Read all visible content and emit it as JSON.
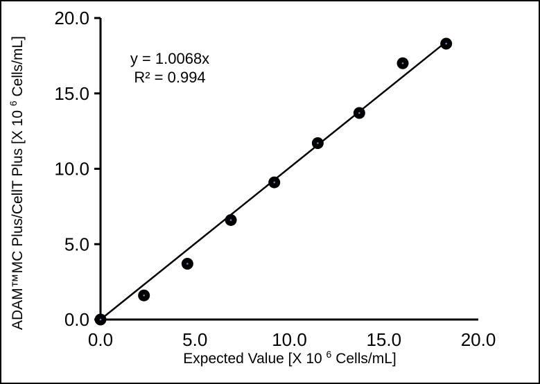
{
  "chart_data": {
    "type": "scatter",
    "points": [
      {
        "x": 0.0,
        "y": 0.0
      },
      {
        "x": 2.3,
        "y": 1.6
      },
      {
        "x": 4.6,
        "y": 3.7
      },
      {
        "x": 6.9,
        "y": 6.6
      },
      {
        "x": 9.2,
        "y": 9.1
      },
      {
        "x": 11.5,
        "y": 11.7
      },
      {
        "x": 13.7,
        "y": 13.7
      },
      {
        "x": 16.0,
        "y": 17.0
      },
      {
        "x": 18.3,
        "y": 18.3
      }
    ],
    "trendline": {
      "equation": "y = 1.0068x",
      "r_squared_text": "R² = 0.994",
      "slope": 1.0068,
      "intercept": 0,
      "r_squared": 0.994,
      "x_range": [
        0,
        18.3
      ]
    },
    "xlabel": {
      "prefix": "Expected Value [X 10",
      "sup": "6",
      "suffix": " Cells/mL]"
    },
    "ylabel": {
      "prefix": "ADAM™MC Plus/CellT Plus [X 10",
      "sup": "6",
      "suffix": " Cells/mL]"
    },
    "x_ticks": [
      "0.0",
      "5.0",
      "10.0",
      "15.0",
      "20.0"
    ],
    "y_ticks": [
      "0.0",
      "5.0",
      "10.0",
      "15.0",
      "20.0"
    ],
    "xlim": [
      0,
      20
    ],
    "ylim": [
      0,
      20
    ],
    "grid": false,
    "legend": "none",
    "colors": {
      "marker": "#000000",
      "marker_center_dot": "#6688bb",
      "trendline": "#000000",
      "axis": "#000000",
      "text": "#000000",
      "background": "#ffffff",
      "frame_border": "#000000"
    }
  }
}
